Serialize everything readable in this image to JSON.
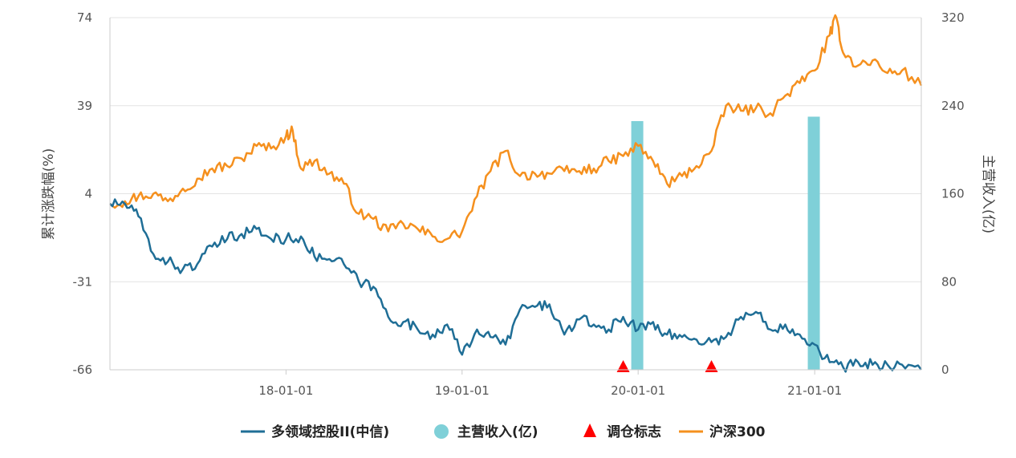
{
  "chart_data": {
    "type": "line",
    "ylabel_left": "累计涨跌幅(%)",
    "ylabel_right": "主营收入(亿)",
    "y_left_ticks": [
      "74",
      "39",
      "4",
      "-31",
      "-66"
    ],
    "y_left_range": [
      -66,
      74
    ],
    "y_right_ticks": [
      "320",
      "240",
      "160",
      "80",
      "0"
    ],
    "y_right_range": [
      0,
      320
    ],
    "x_ticks": [
      "18-01-01",
      "19-01-01",
      "20-01-01",
      "21-01-01"
    ],
    "x_range": [
      "2017-01-01",
      "2021-08-10"
    ],
    "grid": "horizontal",
    "legend_position": "bottom",
    "legend": [
      "多领域控股II(中信)",
      "主营收入(亿)",
      "调仓标志",
      "沪深300"
    ],
    "colors": {
      "sector": "#1f6e96",
      "revenue": "#7fd0d8",
      "marker": "#ff0000",
      "hs300": "#f5901e",
      "grid": "#e3e3e3",
      "axis": "#cccccc"
    },
    "series": [
      {
        "name": "沪深300",
        "axis": "left",
        "x": [
          "2017-01-01",
          "2017-02-01",
          "2017-03-01",
          "2017-04-01",
          "2017-05-01",
          "2017-06-01",
          "2017-07-01",
          "2017-08-01",
          "2017-09-01",
          "2017-10-01",
          "2017-11-01",
          "2017-12-01",
          "2018-01-01",
          "2018-01-15",
          "2018-02-01",
          "2018-03-01",
          "2018-04-01",
          "2018-05-01",
          "2018-06-01",
          "2018-07-01",
          "2018-08-01",
          "2018-09-01",
          "2018-10-01",
          "2018-11-01",
          "2018-12-01",
          "2019-01-01",
          "2019-02-01",
          "2019-03-01",
          "2019-04-01",
          "2019-05-01",
          "2019-06-01",
          "2019-07-01",
          "2019-08-01",
          "2019-09-01",
          "2019-10-01",
          "2019-11-01",
          "2019-12-01",
          "2020-01-01",
          "2020-02-01",
          "2020-03-01",
          "2020-04-01",
          "2020-05-01",
          "2020-06-01",
          "2020-07-01",
          "2020-08-01",
          "2020-09-01",
          "2020-10-01",
          "2020-11-01",
          "2020-12-01",
          "2021-01-01",
          "2021-02-01",
          "2021-02-15",
          "2021-03-01",
          "2021-04-01",
          "2021-05-01",
          "2021-06-01",
          "2021-07-01",
          "2021-08-10"
        ],
        "values": [
          0,
          1,
          3,
          4,
          1,
          6,
          10,
          14,
          15,
          18,
          23,
          22,
          27,
          29,
          14,
          17,
          12,
          8,
          -4,
          -6,
          -11,
          -8,
          -10,
          -13,
          -14,
          -11,
          3,
          13,
          21,
          11,
          12,
          12,
          13,
          13,
          14,
          17,
          19,
          23,
          17,
          8,
          11,
          15,
          21,
          39,
          37,
          38,
          36,
          43,
          48,
          53,
          67,
          74,
          60,
          55,
          57,
          52,
          53,
          47
        ]
      },
      {
        "name": "多领域控股II(中信)",
        "axis": "left",
        "x": [
          "2017-01-01",
          "2017-02-01",
          "2017-03-01",
          "2017-04-01",
          "2017-05-01",
          "2017-06-01",
          "2017-07-01",
          "2017-08-01",
          "2017-09-01",
          "2017-10-01",
          "2017-11-01",
          "2017-12-01",
          "2018-01-01",
          "2018-02-01",
          "2018-03-01",
          "2018-04-01",
          "2018-05-01",
          "2018-06-01",
          "2018-07-01",
          "2018-08-01",
          "2018-09-01",
          "2018-10-01",
          "2018-11-01",
          "2018-12-01",
          "2019-01-01",
          "2019-02-01",
          "2019-03-01",
          "2019-04-01",
          "2019-05-01",
          "2019-06-01",
          "2019-07-01",
          "2019-08-01",
          "2019-09-01",
          "2019-10-01",
          "2019-11-01",
          "2019-12-01",
          "2020-01-01",
          "2020-02-01",
          "2020-03-01",
          "2020-04-01",
          "2020-05-01",
          "2020-06-01",
          "2020-07-01",
          "2020-08-01",
          "2020-09-01",
          "2020-10-01",
          "2020-11-01",
          "2020-12-01",
          "2021-01-01",
          "2021-02-01",
          "2021-03-01",
          "2021-04-01",
          "2021-05-01",
          "2021-06-01",
          "2021-07-01",
          "2021-08-10"
        ],
        "values": [
          0,
          0,
          -5,
          -20,
          -23,
          -26,
          -24,
          -17,
          -14,
          -12,
          -10,
          -14,
          -14,
          -13,
          -21,
          -22,
          -24,
          -31,
          -33,
          -45,
          -47,
          -50,
          -52,
          -48,
          -60,
          -50,
          -53,
          -56,
          -42,
          -41,
          -40,
          -52,
          -46,
          -48,
          -50,
          -45,
          -50,
          -47,
          -52,
          -53,
          -54,
          -55,
          -53,
          -45,
          -43,
          -50,
          -48,
          -52,
          -56,
          -63,
          -65,
          -63,
          -64,
          -64,
          -64,
          -66
        ]
      }
    ],
    "bars": {
      "name": "主营收入(亿)",
      "axis": "right",
      "x": [
        "2019-12-31",
        "2020-12-31"
      ],
      "values": [
        226,
        230
      ]
    },
    "markers": {
      "name": "调仓标志",
      "x": [
        "2019-12-01",
        "2020-06-01"
      ]
    }
  }
}
